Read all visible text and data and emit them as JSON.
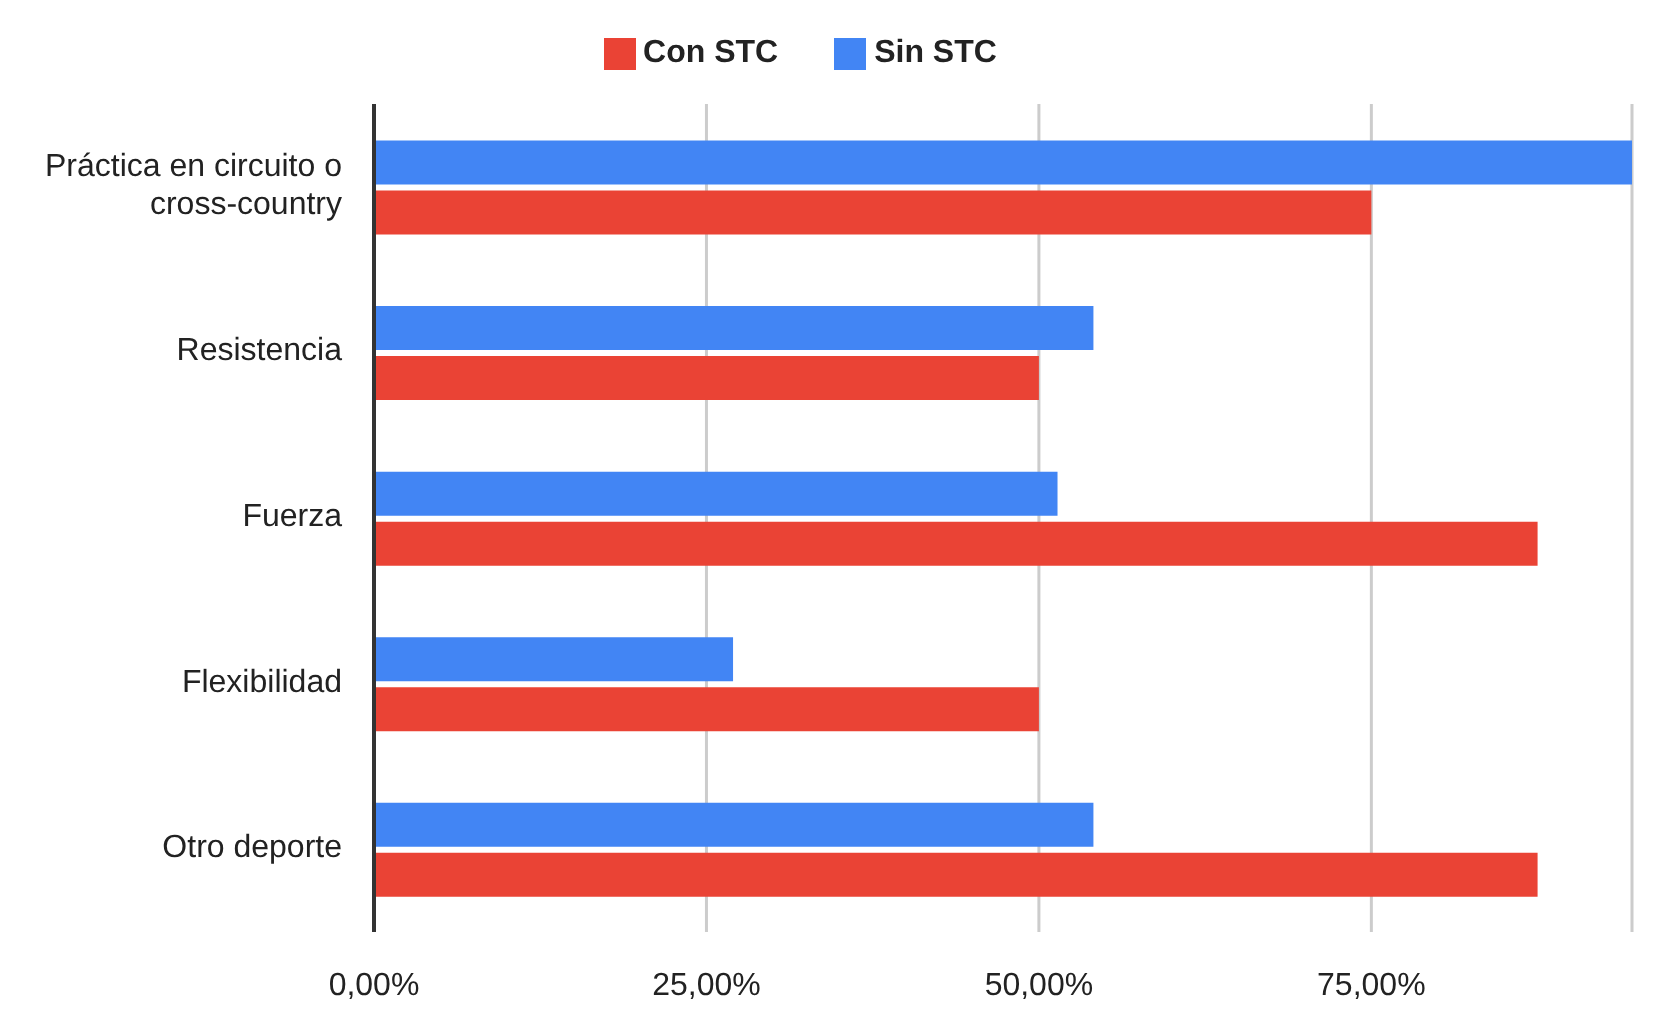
{
  "chart_data": {
    "type": "bar",
    "orientation": "horizontal",
    "categories": [
      "Práctica en circuito o cross-country",
      "Resistencia",
      "Fuerza",
      "Flexibilidad",
      "Otro deporte"
    ],
    "series": [
      {
        "name": "Sin STC",
        "color": "#4285f4",
        "values": [
          94.6,
          54.1,
          51.4,
          27,
          54.1
        ]
      },
      {
        "name": "Con STC",
        "color": "#ea4335",
        "values": [
          75,
          50,
          87.5,
          50,
          87.5
        ]
      }
    ],
    "xlim": [
      0,
      94.6
    ],
    "xticks": [
      {
        "value": 0,
        "label": "0,00%"
      },
      {
        "value": 25,
        "label": "25,00%"
      },
      {
        "value": 50,
        "label": "50,00%"
      },
      {
        "value": 75,
        "label": "75,00%"
      }
    ],
    "grid": "x",
    "legend": "top"
  }
}
